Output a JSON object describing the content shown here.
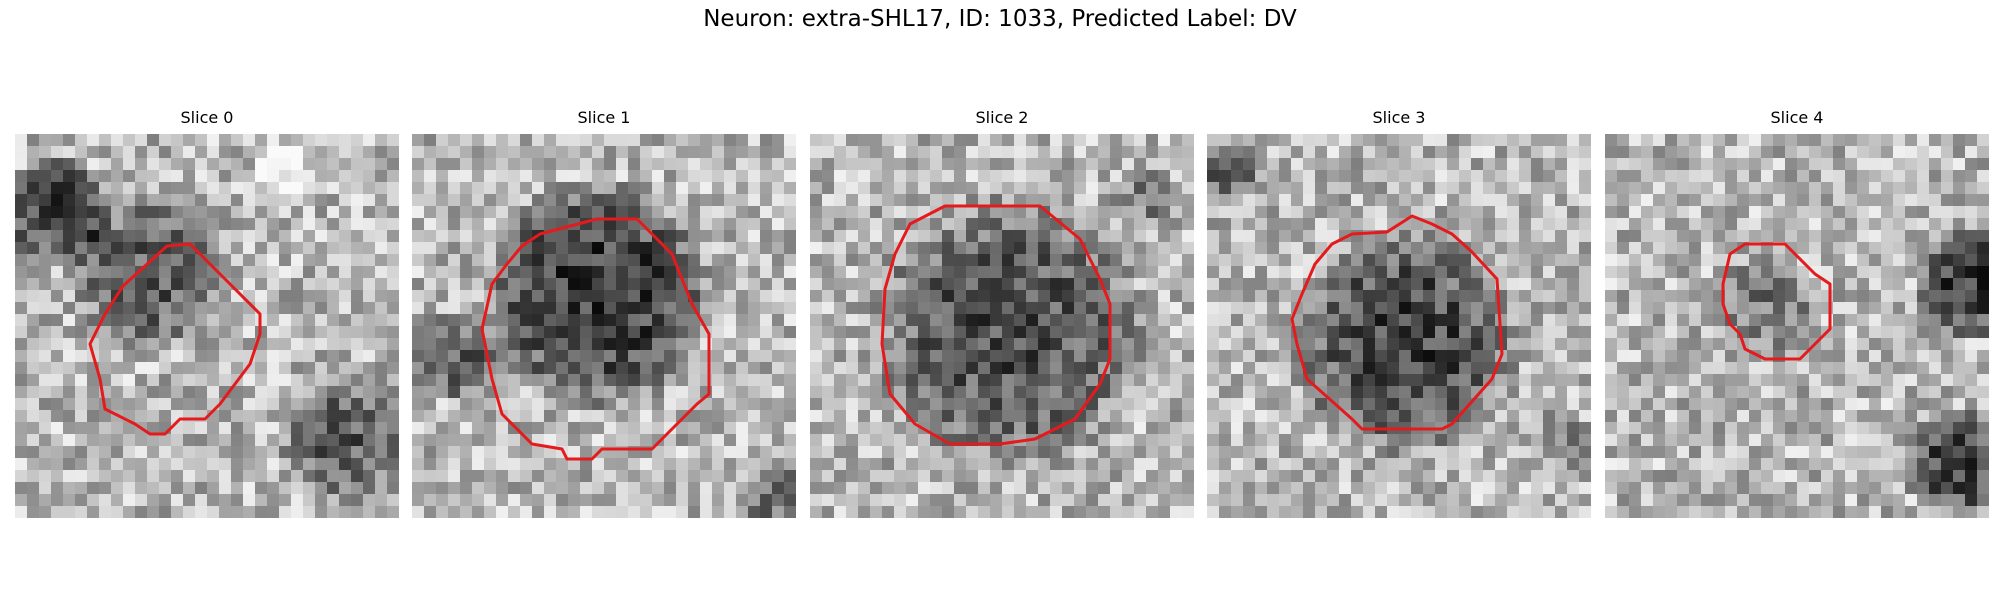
{
  "figure": {
    "title": "Neuron: extra-SHL17, ID: 1033, Predicted Label: DV"
  },
  "panels": [
    {
      "title": "Slice 0"
    },
    {
      "title": "Slice 1"
    },
    {
      "title": "Slice 2"
    },
    {
      "title": "Slice 3"
    },
    {
      "title": "Slice 4"
    }
  ],
  "colors": {
    "contour": "#e41a1c",
    "background": "#ffffff"
  }
}
